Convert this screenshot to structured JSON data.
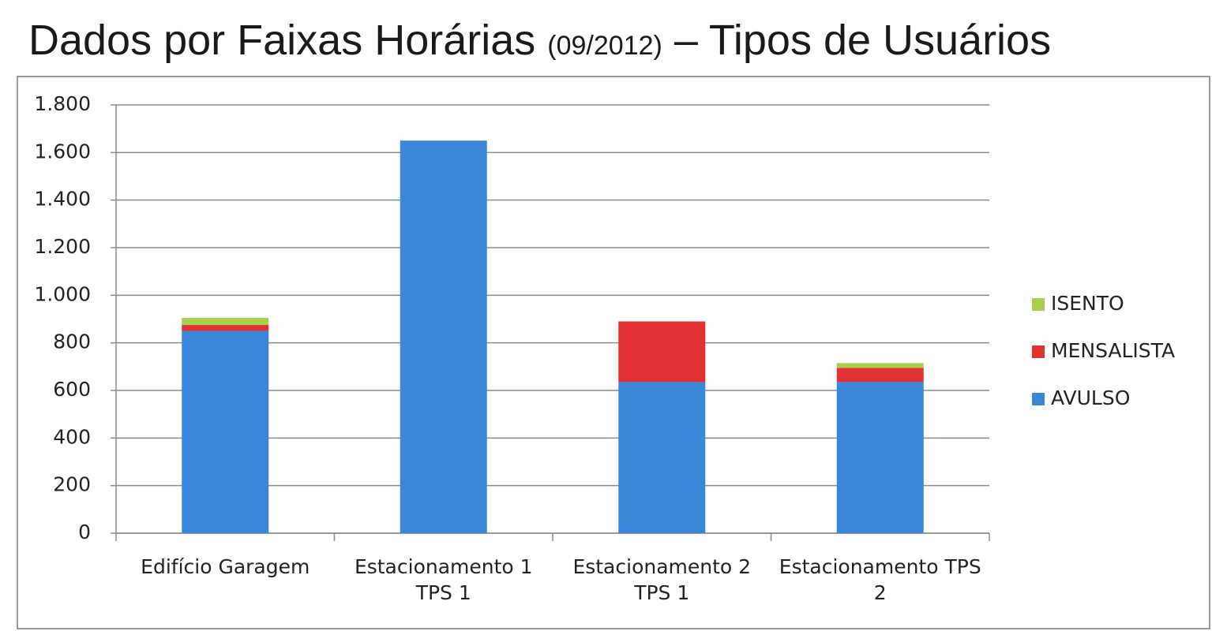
{
  "chart_data": {
    "type": "stacked_bar",
    "title_parts": [
      "Dados por Faixas Horárias",
      "(09/2012)",
      "– Tipos de Usuários"
    ],
    "categories": [
      "Edifício Garagem",
      "Estacionamento 1 TPS 1",
      "Estacionamento 2 TPS 1",
      "Estacionamento TPS 2"
    ],
    "series": [
      {
        "name": "AVULSO",
        "color": "#3a87d9",
        "values": [
          850,
          1650,
          635,
          635
        ]
      },
      {
        "name": "MENSALISTA",
        "color": "#e03232",
        "values": [
          25,
          0,
          255,
          60
        ]
      },
      {
        "name": "ISENTO",
        "color": "#a8d04a",
        "values": [
          30,
          0,
          0,
          20
        ]
      }
    ],
    "ylim": [
      0,
      1800
    ],
    "yticks": [
      0,
      200,
      400,
      600,
      800,
      {
        "value": 1000,
        "label": "1.000"
      },
      {
        "value": 1200,
        "label": "1.200"
      },
      {
        "value": 1400,
        "label": "1.400"
      },
      {
        "value": 1600,
        "label": "1.600"
      },
      {
        "value": 1800,
        "label": "1.800"
      }
    ],
    "grid": true,
    "legend": "right"
  }
}
